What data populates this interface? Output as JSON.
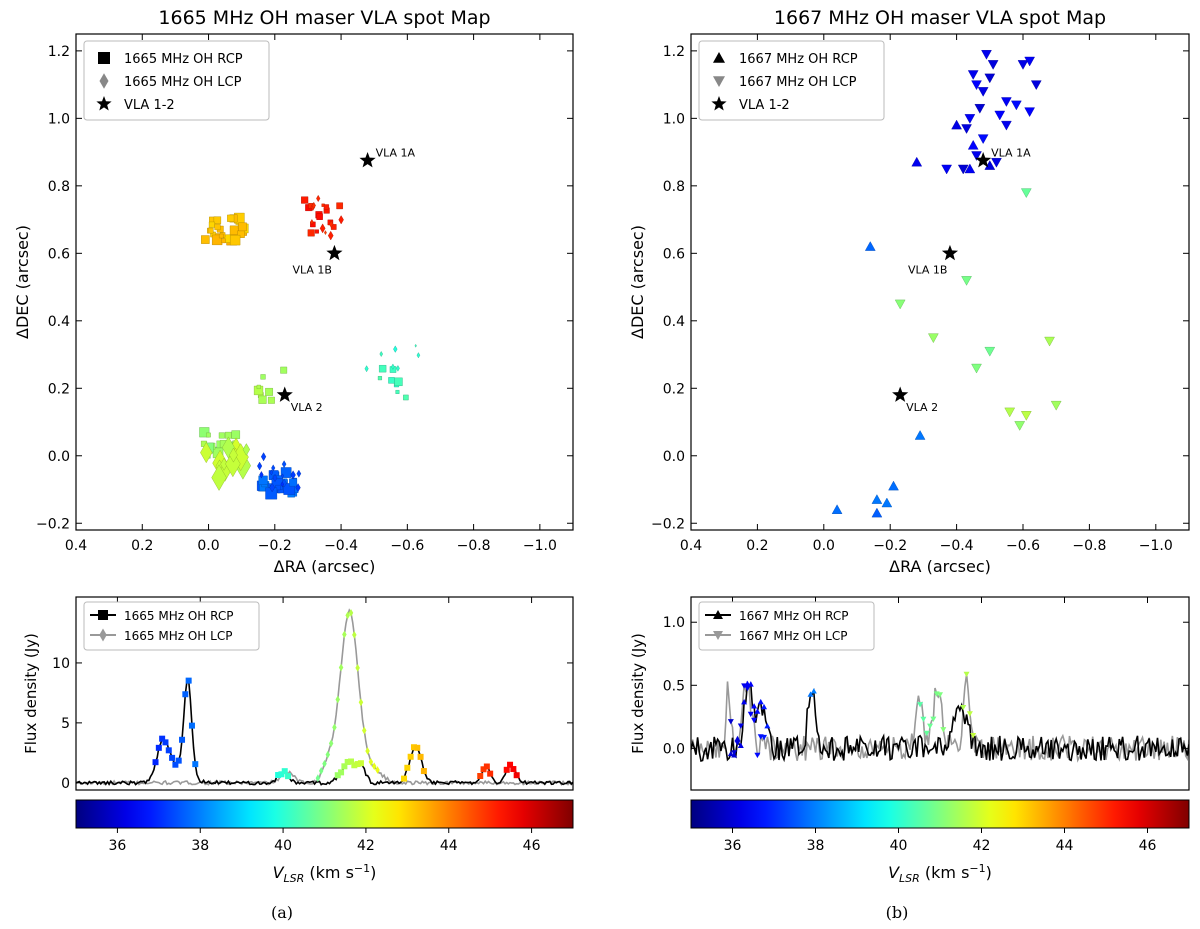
{
  "panels": [
    {
      "id": "a",
      "caption": "(a)",
      "map": {
        "title": "1665 MHz OH maser VLA spot Map",
        "xlabel": "ΔRA (arcsec)",
        "ylabel": "ΔDEC (arcsec)",
        "xlim": [
          0.4,
          -1.1
        ],
        "ylim": [
          -0.22,
          1.25
        ],
        "xticks": [
          0.4,
          0.2,
          0.0,
          -0.2,
          -0.4,
          -0.6,
          -0.8,
          -1.0
        ],
        "xtick_labels": [
          "0.4",
          "0.2",
          "0.0",
          "−0.2",
          "−0.4",
          "−0.6",
          "−0.8",
          "−1.0"
        ],
        "yticks": [
          -0.2,
          0.0,
          0.2,
          0.4,
          0.6,
          0.8,
          1.0,
          1.2
        ],
        "ytick_labels": [
          "−0.2",
          "0.0",
          "0.2",
          "0.4",
          "0.6",
          "0.8",
          "1.0",
          "1.2"
        ],
        "legend": [
          "1665 MHz OH RCP",
          "1665 MHz OH LCP",
          "VLA 1-2"
        ],
        "legend_markers": [
          "square",
          "diamond",
          "star"
        ],
        "sources": [
          {
            "name": "VLA 1A",
            "ra": -0.48,
            "dec": 0.875
          },
          {
            "name": "VLA 1B",
            "ra": -0.38,
            "dec": 0.6
          },
          {
            "name": "VLA 2",
            "ra": -0.23,
            "dec": 0.18
          }
        ],
        "clusters": [
          {
            "pol": "RCP",
            "v": 43.2,
            "ra": -0.05,
            "dec": 0.67,
            "dra": 0.06,
            "ddec": 0.035,
            "n": 28,
            "size": 9
          },
          {
            "pol": "RCP",
            "v": 45.2,
            "ra": -0.34,
            "dec": 0.71,
            "dra": 0.06,
            "ddec": 0.05,
            "n": 14,
            "size": 6
          },
          {
            "pol": "LCP",
            "v": 45.0,
            "ra": -0.36,
            "dec": 0.72,
            "dra": 0.05,
            "ddec": 0.07,
            "n": 9,
            "size": 6
          },
          {
            "pol": "RCP",
            "v": 40.2,
            "ra": -0.55,
            "dec": 0.22,
            "dra": 0.05,
            "ddec": 0.05,
            "n": 8,
            "size": 7
          },
          {
            "pol": "LCP",
            "v": 40.1,
            "ra": -0.55,
            "dec": 0.27,
            "dra": 0.1,
            "ddec": 0.06,
            "n": 7,
            "size": 5
          },
          {
            "pol": "RCP",
            "v": 41.5,
            "ra": -0.19,
            "dec": 0.21,
            "dra": 0.04,
            "ddec": 0.05,
            "n": 8,
            "size": 8
          },
          {
            "pol": "RCP",
            "v": 41.3,
            "ra": -0.04,
            "dec": 0.02,
            "dra": 0.06,
            "ddec": 0.05,
            "n": 18,
            "size": 9
          },
          {
            "pol": "LCP",
            "v": 41.8,
            "ra": -0.06,
            "dec": -0.02,
            "dra": 0.07,
            "ddec": 0.05,
            "n": 14,
            "size": 20
          },
          {
            "pol": "RCP",
            "v": 37.7,
            "ra": -0.21,
            "dec": -0.08,
            "dra": 0.05,
            "ddec": 0.035,
            "n": 30,
            "size": 10
          },
          {
            "pol": "LCP",
            "v": 37.3,
            "ra": -0.21,
            "dec": -0.04,
            "dra": 0.07,
            "ddec": 0.06,
            "n": 14,
            "size": 6
          }
        ]
      },
      "spectrum": {
        "ylabel": "Flux density (Jy)",
        "xlim": [
          35,
          47
        ],
        "ylim": [
          -0.6,
          15.5
        ],
        "yticks": [
          0,
          5,
          10
        ],
        "ytick_labels": [
          "0",
          "5",
          "10"
        ],
        "legend": [
          "1665 MHz OH RCP",
          "1665 MHz OH LCP"
        ],
        "legend_markers": [
          "square",
          "diamond"
        ],
        "rcp_peaks": [
          {
            "v": 37.1,
            "amp": 3.3,
            "w": 0.15
          },
          {
            "v": 37.7,
            "amp": 7.9,
            "w": 0.09
          },
          {
            "v": 37.5,
            "amp": 1.2,
            "w": 0.25
          },
          {
            "v": 40.0,
            "amp": 0.9,
            "w": 0.12
          },
          {
            "v": 41.6,
            "amp": 1.7,
            "w": 0.18
          },
          {
            "v": 41.9,
            "amp": 1.0,
            "w": 0.1
          },
          {
            "v": 43.2,
            "amp": 3.1,
            "w": 0.14
          },
          {
            "v": 44.9,
            "amp": 1.5,
            "w": 0.1
          },
          {
            "v": 45.5,
            "amp": 1.4,
            "w": 0.12
          }
        ],
        "lcp_peaks": [
          {
            "v": 41.6,
            "amp": 14.3,
            "w": 0.22
          },
          {
            "v": 41.1,
            "amp": 1.5,
            "w": 0.15
          },
          {
            "v": 40.1,
            "amp": 0.9,
            "w": 0.15
          },
          {
            "v": 42.2,
            "amp": 1.0,
            "w": 0.2
          }
        ],
        "noise": 0.15,
        "rcp_markers": [
          [
            36.85,
            37.5
          ],
          [
            37.55,
            37.95
          ],
          [
            39.85,
            40.15
          ],
          [
            41.3,
            41.95
          ],
          [
            42.9,
            43.4
          ],
          [
            44.75,
            45.05
          ],
          [
            45.35,
            45.7
          ]
        ],
        "lcp_markers": [
          [
            40.8,
            42.3
          ]
        ]
      },
      "colorbar": {
        "range": [
          35,
          47
        ],
        "ticks": [
          36,
          38,
          40,
          42,
          44,
          46
        ],
        "tick_labels": [
          "36",
          "38",
          "40",
          "42",
          "44",
          "46"
        ],
        "label": "V",
        "label_sub": "LSR",
        "label_units": "(km s",
        "label_sup": "−1",
        "label_close": ")"
      }
    },
    {
      "id": "b",
      "caption": "(b)",
      "map": {
        "title": "1667 MHz OH maser VLA spot Map",
        "xlabel": "ΔRA (arcsec)",
        "ylabel": "ΔDEC (arcsec)",
        "xlim": [
          0.4,
          -1.1
        ],
        "ylim": [
          -0.22,
          1.25
        ],
        "xticks": [
          0.4,
          0.2,
          0.0,
          -0.2,
          -0.4,
          -0.6,
          -0.8,
          -1.0
        ],
        "xtick_labels": [
          "0.4",
          "0.2",
          "0.0",
          "−0.2",
          "−0.4",
          "−0.6",
          "−0.8",
          "−1.0"
        ],
        "yticks": [
          -0.2,
          0.0,
          0.2,
          0.4,
          0.6,
          0.8,
          1.0,
          1.2
        ],
        "ytick_labels": [
          "−0.2",
          "0.0",
          "0.2",
          "0.4",
          "0.6",
          "0.8",
          "1.0",
          "1.2"
        ],
        "legend": [
          "1667 MHz OH RCP",
          "1667 MHz OH LCP",
          "VLA 1-2"
        ],
        "legend_markers": [
          "triangle-up",
          "triangle-down",
          "star"
        ],
        "sources": [
          {
            "name": "VLA 1A",
            "ra": -0.48,
            "dec": 0.875
          },
          {
            "name": "VLA 1B",
            "ra": -0.38,
            "dec": 0.6
          },
          {
            "name": "VLA 2",
            "ra": -0.23,
            "dec": 0.18
          }
        ],
        "points": [
          {
            "pol": "RCP",
            "ra": -0.14,
            "dec": 0.62,
            "v": 37.7
          },
          {
            "pol": "RCP",
            "ra": -0.28,
            "dec": 0.87,
            "v": 36.3
          },
          {
            "pol": "RCP",
            "ra": -0.4,
            "dec": 0.98,
            "v": 36.2
          },
          {
            "pol": "RCP",
            "ra": -0.45,
            "dec": 0.92,
            "v": 36.5
          },
          {
            "pol": "RCP",
            "ra": -0.44,
            "dec": 0.85,
            "v": 36.4
          },
          {
            "pol": "RCP",
            "ra": -0.5,
            "dec": 0.86,
            "v": 36.1
          },
          {
            "pol": "RCP",
            "ra": -0.29,
            "dec": 0.06,
            "v": 37.9
          },
          {
            "pol": "RCP",
            "ra": -0.04,
            "dec": -0.16,
            "v": 37.8
          },
          {
            "pol": "RCP",
            "ra": -0.16,
            "dec": -0.13,
            "v": 37.9
          },
          {
            "pol": "RCP",
            "ra": -0.16,
            "dec": -0.17,
            "v": 37.6
          },
          {
            "pol": "RCP",
            "ra": -0.19,
            "dec": -0.14,
            "v": 37.9
          },
          {
            "pol": "RCP",
            "ra": -0.21,
            "dec": -0.09,
            "v": 37.8
          },
          {
            "pol": "LCP",
            "ra": -0.45,
            "dec": 1.13,
            "v": 36.3
          },
          {
            "pol": "LCP",
            "ra": -0.46,
            "dec": 1.1,
            "v": 36.5
          },
          {
            "pol": "LCP",
            "ra": -0.48,
            "dec": 1.08,
            "v": 36.2
          },
          {
            "pol": "LCP",
            "ra": -0.47,
            "dec": 1.03,
            "v": 36.0
          },
          {
            "pol": "LCP",
            "ra": -0.44,
            "dec": 1.0,
            "v": 36.4
          },
          {
            "pol": "LCP",
            "ra": -0.43,
            "dec": 0.97,
            "v": 36.1
          },
          {
            "pol": "LCP",
            "ra": -0.48,
            "dec": 0.94,
            "v": 36.6
          },
          {
            "pol": "LCP",
            "ra": -0.46,
            "dec": 0.89,
            "v": 36.3
          },
          {
            "pol": "LCP",
            "ra": -0.52,
            "dec": 0.87,
            "v": 36.2
          },
          {
            "pol": "LCP",
            "ra": -0.53,
            "dec": 1.01,
            "v": 36.5
          },
          {
            "pol": "LCP",
            "ra": -0.55,
            "dec": 1.05,
            "v": 36.4
          },
          {
            "pol": "LCP",
            "ra": -0.51,
            "dec": 1.16,
            "v": 36.1
          },
          {
            "pol": "LCP",
            "ra": -0.5,
            "dec": 1.12,
            "v": 36.0
          },
          {
            "pol": "LCP",
            "ra": -0.49,
            "dec": 1.19,
            "v": 36.3
          },
          {
            "pol": "LCP",
            "ra": -0.58,
            "dec": 1.04,
            "v": 36.6
          },
          {
            "pol": "LCP",
            "ra": -0.6,
            "dec": 1.16,
            "v": 36.2
          },
          {
            "pol": "LCP",
            "ra": -0.62,
            "dec": 1.17,
            "v": 36.4
          },
          {
            "pol": "LCP",
            "ra": -0.64,
            "dec": 1.1,
            "v": 36.1
          },
          {
            "pol": "LCP",
            "ra": -0.62,
            "dec": 1.02,
            "v": 36.5
          },
          {
            "pol": "LCP",
            "ra": -0.55,
            "dec": 0.98,
            "v": 36.3
          },
          {
            "pol": "LCP",
            "ra": -0.42,
            "dec": 0.85,
            "v": 36.0
          },
          {
            "pol": "LCP",
            "ra": -0.37,
            "dec": 0.85,
            "v": 36.4
          },
          {
            "pol": "LCP",
            "ra": -0.61,
            "dec": 0.78,
            "v": 40.7
          },
          {
            "pol": "LCP",
            "ra": -0.43,
            "dec": 0.52,
            "v": 40.9
          },
          {
            "pol": "LCP",
            "ra": -0.23,
            "dec": 0.45,
            "v": 41.1
          },
          {
            "pol": "LCP",
            "ra": -0.33,
            "dec": 0.35,
            "v": 41.3
          },
          {
            "pol": "LCP",
            "ra": -0.5,
            "dec": 0.31,
            "v": 40.8
          },
          {
            "pol": "LCP",
            "ra": -0.46,
            "dec": 0.26,
            "v": 41.0
          },
          {
            "pol": "LCP",
            "ra": -0.68,
            "dec": 0.34,
            "v": 41.5
          },
          {
            "pol": "LCP",
            "ra": -0.56,
            "dec": 0.13,
            "v": 41.6
          },
          {
            "pol": "LCP",
            "ra": -0.59,
            "dec": 0.09,
            "v": 41.2
          },
          {
            "pol": "LCP",
            "ra": -0.61,
            "dec": 0.12,
            "v": 41.7
          },
          {
            "pol": "LCP",
            "ra": -0.7,
            "dec": 0.15,
            "v": 41.4
          }
        ]
      },
      "spectrum": {
        "ylabel": "Flux density (Jy)",
        "xlim": [
          35,
          47
        ],
        "ylim": [
          -0.33,
          1.2
        ],
        "yticks": [
          0.0,
          0.5,
          1.0
        ],
        "ytick_labels": [
          "0.0",
          "0.5",
          "1.0"
        ],
        "legend": [
          "1667 MHz OH RCP",
          "1667 MHz OH LCP"
        ],
        "legend_markers": [
          "triangle-up",
          "triangle-down"
        ],
        "rcp_peaks": [
          {
            "v": 36.4,
            "amp": 0.45,
            "w": 0.12
          },
          {
            "v": 36.7,
            "amp": 0.3,
            "w": 0.1
          },
          {
            "v": 37.9,
            "amp": 0.5,
            "w": 0.08
          },
          {
            "v": 41.5,
            "amp": 0.35,
            "w": 0.15
          }
        ],
        "lcp_peaks": [
          {
            "v": 35.9,
            "amp": 0.5,
            "w": 0.05
          },
          {
            "v": 36.35,
            "amp": 0.55,
            "w": 0.1
          },
          {
            "v": 40.5,
            "amp": 0.45,
            "w": 0.08
          },
          {
            "v": 40.95,
            "amp": 0.5,
            "w": 0.1
          },
          {
            "v": 41.65,
            "amp": 0.55,
            "w": 0.08
          }
        ],
        "noise": 0.1,
        "rcp_markers": [
          [
            35.9,
            36.9
          ],
          [
            37.85,
            38.0
          ]
        ],
        "lcp_markers": [
          [
            35.9,
            36.8
          ],
          [
            40.5,
            41.1
          ],
          [
            41.5,
            41.8
          ]
        ]
      },
      "colorbar": {
        "range": [
          35,
          47
        ],
        "ticks": [
          36,
          38,
          40,
          42,
          44,
          46
        ],
        "tick_labels": [
          "36",
          "38",
          "40",
          "42",
          "44",
          "46"
        ],
        "label": "V",
        "label_sub": "LSR",
        "label_units": "(km s",
        "label_sup": "−1",
        "label_close": ")"
      }
    }
  ],
  "chart_data": [
    {
      "type": "scatter",
      "title": "1665 MHz OH maser VLA spot Map",
      "xlabel": "ΔRA (arcsec)",
      "ylabel": "ΔDEC (arcsec)",
      "xlim": [
        0.4,
        -1.1
      ],
      "ylim": [
        -0.22,
        1.25
      ],
      "series": [
        {
          "name": "1665 MHz OH RCP",
          "marker": "square",
          "colored_by": "V_LSR"
        },
        {
          "name": "1665 MHz OH LCP",
          "marker": "diamond",
          "colored_by": "V_LSR"
        },
        {
          "name": "VLA 1-2",
          "marker": "star",
          "x": [
            -0.48,
            -0.38,
            -0.23
          ],
          "y": [
            0.875,
            0.6,
            0.18
          ],
          "labels": [
            "VLA 1A",
            "VLA 1B",
            "VLA 2"
          ]
        }
      ],
      "legend": "top-left"
    },
    {
      "type": "line",
      "xlabel": "V_LSR (km s^-1)",
      "ylabel": "Flux density (Jy)",
      "xlim": [
        35,
        47
      ],
      "series": [
        {
          "name": "1665 MHz OH RCP",
          "peaks_v": [
            37.1,
            37.7,
            40.0,
            41.6,
            43.2,
            44.9,
            45.5
          ],
          "peaks_flux": [
            3.3,
            7.9,
            0.9,
            1.7,
            3.1,
            1.5,
            1.4
          ]
        },
        {
          "name": "1665 MHz OH LCP",
          "peaks_v": [
            40.1,
            41.6
          ],
          "peaks_flux": [
            0.9,
            14.3
          ]
        }
      ],
      "legend": "top-left"
    },
    {
      "type": "scatter",
      "title": "1667 MHz OH maser VLA spot Map",
      "xlabel": "ΔRA (arcsec)",
      "ylabel": "ΔDEC (arcsec)",
      "xlim": [
        0.4,
        -1.1
      ],
      "ylim": [
        -0.22,
        1.25
      ],
      "series": [
        {
          "name": "1667 MHz OH RCP",
          "marker": "triangle-up",
          "colored_by": "V_LSR"
        },
        {
          "name": "1667 MHz OH LCP",
          "marker": "triangle-down",
          "colored_by": "V_LSR"
        },
        {
          "name": "VLA 1-2",
          "marker": "star",
          "x": [
            -0.48,
            -0.38,
            -0.23
          ],
          "y": [
            0.875,
            0.6,
            0.18
          ],
          "labels": [
            "VLA 1A",
            "VLA 1B",
            "VLA 2"
          ]
        }
      ],
      "legend": "top-left"
    },
    {
      "type": "line",
      "xlabel": "V_LSR (km s^-1)",
      "ylabel": "Flux density (Jy)",
      "xlim": [
        35,
        47
      ],
      "series": [
        {
          "name": "1667 MHz OH RCP",
          "peaks_v": [
            36.4,
            37.9,
            41.5
          ],
          "peaks_flux": [
            0.45,
            0.5,
            0.35
          ]
        },
        {
          "name": "1667 MHz OH LCP",
          "peaks_v": [
            36.35,
            40.95,
            41.65
          ],
          "peaks_flux": [
            0.55,
            0.5,
            0.55
          ]
        }
      ],
      "legend": "top-left"
    }
  ]
}
